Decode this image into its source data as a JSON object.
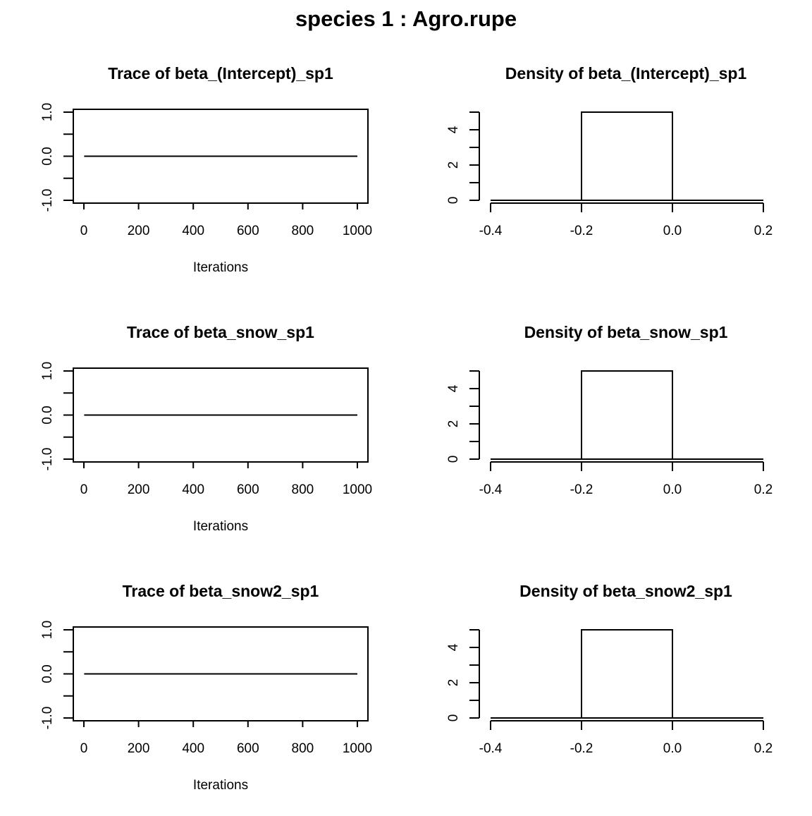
{
  "figure": {
    "title": "species 1 : Agro.rupe"
  },
  "chart_data": [
    {
      "type": "line",
      "title": "Trace of beta_(Intercept)_sp1",
      "xlabel": "Iterations",
      "ylabel": "",
      "xlim": [
        0,
        1000
      ],
      "ylim": [
        -1.0,
        1.0
      ],
      "x_ticks": [
        0,
        200,
        400,
        600,
        800,
        1000
      ],
      "x_tick_labels": [
        "0",
        "200",
        "400",
        "600",
        "800",
        "1000"
      ],
      "y_ticks": [
        -1.0,
        -0.5,
        0.0,
        0.5,
        1.0
      ],
      "y_tick_labels": [
        "-1.0",
        "",
        "0.0",
        "",
        "1.0"
      ],
      "series": [
        {
          "x": [
            1,
            1000
          ],
          "y": [
            0,
            0
          ]
        }
      ],
      "grid": false,
      "legend": "none"
    },
    {
      "type": "bar",
      "title": "Density of beta_(Intercept)_sp1",
      "xlabel": "",
      "ylabel": "",
      "xlim": [
        -0.4,
        0.2
      ],
      "ylim": [
        0,
        5
      ],
      "x_ticks": [
        -0.4,
        -0.2,
        0.0,
        0.2
      ],
      "x_tick_labels": [
        "-0.4",
        "-0.2",
        "0.0",
        "0.2"
      ],
      "y_ticks": [
        0,
        1,
        2,
        3,
        4,
        5
      ],
      "y_tick_labels": [
        "0",
        "",
        "2",
        "",
        "4",
        ""
      ],
      "bins": [
        {
          "x0": -0.2,
          "x1": 0.0,
          "value": 5
        }
      ],
      "baseline": 0,
      "grid": false,
      "legend": "none"
    },
    {
      "type": "line",
      "title": "Trace of beta_snow_sp1",
      "xlabel": "Iterations",
      "ylabel": "",
      "xlim": [
        0,
        1000
      ],
      "ylim": [
        -1.0,
        1.0
      ],
      "x_ticks": [
        0,
        200,
        400,
        600,
        800,
        1000
      ],
      "x_tick_labels": [
        "0",
        "200",
        "400",
        "600",
        "800",
        "1000"
      ],
      "y_ticks": [
        -1.0,
        -0.5,
        0.0,
        0.5,
        1.0
      ],
      "y_tick_labels": [
        "-1.0",
        "",
        "0.0",
        "",
        "1.0"
      ],
      "series": [
        {
          "x": [
            1,
            1000
          ],
          "y": [
            0,
            0
          ]
        }
      ],
      "grid": false,
      "legend": "none"
    },
    {
      "type": "bar",
      "title": "Density of beta_snow_sp1",
      "xlabel": "",
      "ylabel": "",
      "xlim": [
        -0.4,
        0.2
      ],
      "ylim": [
        0,
        5
      ],
      "x_ticks": [
        -0.4,
        -0.2,
        0.0,
        0.2
      ],
      "x_tick_labels": [
        "-0.4",
        "-0.2",
        "0.0",
        "0.2"
      ],
      "y_ticks": [
        0,
        1,
        2,
        3,
        4,
        5
      ],
      "y_tick_labels": [
        "0",
        "",
        "2",
        "",
        "4",
        ""
      ],
      "bins": [
        {
          "x0": -0.2,
          "x1": 0.0,
          "value": 5
        }
      ],
      "baseline": 0,
      "grid": false,
      "legend": "none"
    },
    {
      "type": "line",
      "title": "Trace of beta_snow2_sp1",
      "xlabel": "Iterations",
      "ylabel": "",
      "xlim": [
        0,
        1000
      ],
      "ylim": [
        -1.0,
        1.0
      ],
      "x_ticks": [
        0,
        200,
        400,
        600,
        800,
        1000
      ],
      "x_tick_labels": [
        "0",
        "200",
        "400",
        "600",
        "800",
        "1000"
      ],
      "y_ticks": [
        -1.0,
        -0.5,
        0.0,
        0.5,
        1.0
      ],
      "y_tick_labels": [
        "-1.0",
        "",
        "0.0",
        "",
        "1.0"
      ],
      "series": [
        {
          "x": [
            1,
            1000
          ],
          "y": [
            0,
            0
          ]
        }
      ],
      "grid": false,
      "legend": "none"
    },
    {
      "type": "bar",
      "title": "Density of beta_snow2_sp1",
      "xlabel": "",
      "ylabel": "",
      "xlim": [
        -0.4,
        0.2
      ],
      "ylim": [
        0,
        5
      ],
      "x_ticks": [
        -0.4,
        -0.2,
        0.0,
        0.2
      ],
      "x_tick_labels": [
        "-0.4",
        "-0.2",
        "0.0",
        "0.2"
      ],
      "y_ticks": [
        0,
        1,
        2,
        3,
        4,
        5
      ],
      "y_tick_labels": [
        "0",
        "",
        "2",
        "",
        "4",
        ""
      ],
      "bins": [
        {
          "x0": -0.2,
          "x1": 0.0,
          "value": 5
        }
      ],
      "baseline": 0,
      "grid": false,
      "legend": "none"
    }
  ]
}
